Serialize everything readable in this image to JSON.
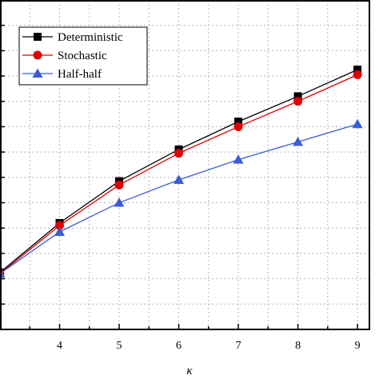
{
  "chart_data": {
    "type": "line",
    "xlabel": "κ",
    "ylabel": "",
    "x_ticks": [
      "4",
      "5",
      "6",
      "7",
      "8",
      "9"
    ],
    "xlim": [
      3,
      9.2
    ],
    "ylim": [
      0,
      13
    ],
    "grid": true,
    "legend_position": "top-left",
    "series": [
      {
        "name": "Deterministic",
        "color": "#000000",
        "marker": "square",
        "x": [
          3,
          4,
          5,
          6,
          7,
          8,
          9
        ],
        "y": [
          2.25,
          4.2,
          5.85,
          7.1,
          8.2,
          9.2,
          10.25
        ]
      },
      {
        "name": "Stochastic",
        "color": "#e00000",
        "marker": "circle",
        "x": [
          3,
          4,
          5,
          6,
          7,
          8,
          9
        ],
        "y": [
          2.2,
          4.1,
          5.7,
          6.95,
          8.0,
          9.0,
          10.05
        ]
      },
      {
        "name": "Half-half",
        "color": "#3b5bd6",
        "marker": "triangle",
        "x": [
          3,
          4,
          5,
          6,
          7,
          8,
          9
        ],
        "y": [
          2.2,
          3.85,
          5.0,
          5.9,
          6.7,
          7.4,
          8.1
        ]
      }
    ]
  }
}
